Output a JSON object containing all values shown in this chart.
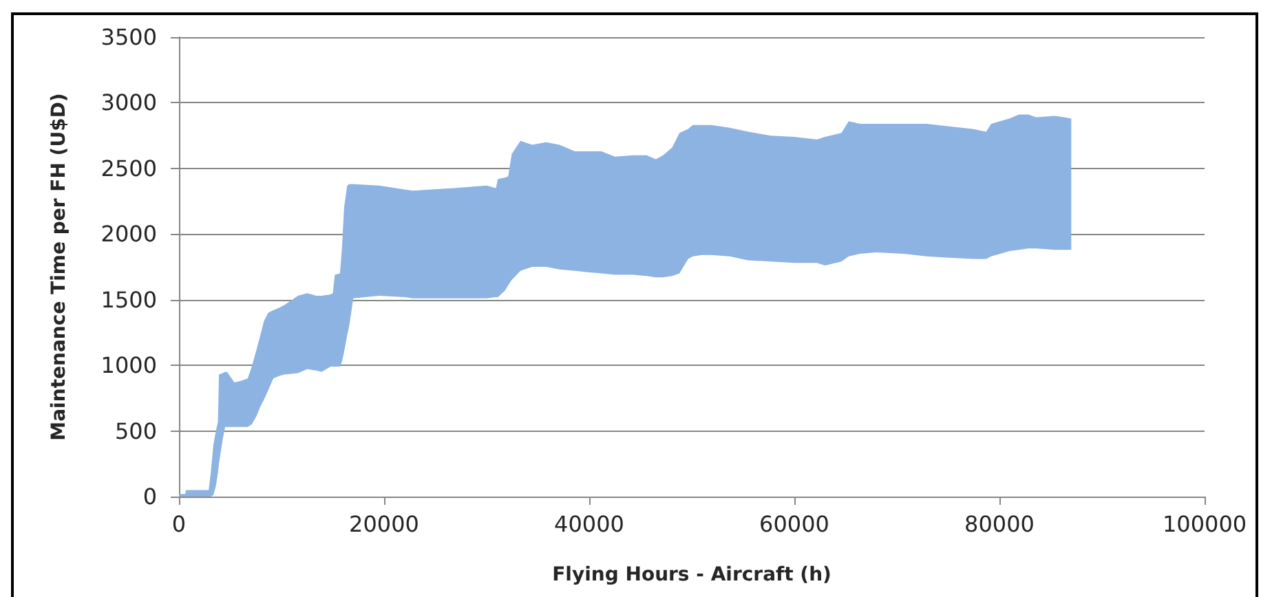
{
  "chart_data": {
    "type": "area",
    "xlabel": "Flying Hours - Aircraft (h)",
    "ylabel": "Maintenance Time per FH (U$D)",
    "x": [
      0,
      600,
      700,
      1700,
      2900,
      3100,
      3350,
      3600,
      3800,
      3900,
      4250,
      4500,
      4700,
      5400,
      6000,
      6700,
      7100,
      7600,
      7900,
      8300,
      8700,
      9200,
      9800,
      10300,
      11600,
      12500,
      13400,
      13900,
      14800,
      15000,
      15200,
      15700,
      15900,
      16100,
      16400,
      16600,
      17000,
      19500,
      22000,
      22800,
      24600,
      26800,
      30000,
      30900,
      31100,
      31800,
      32100,
      32450,
      33300,
      34450,
      35800,
      37100,
      38600,
      39800,
      41200,
      42500,
      44300,
      45600,
      46500,
      47200,
      48100,
      48800,
      49650,
      50100,
      51000,
      51900,
      53700,
      55500,
      57700,
      60000,
      62200,
      63000,
      64600,
      65300,
      66400,
      68000,
      70700,
      72900,
      75100,
      77400,
      78700,
      79200,
      81000,
      81900,
      82800,
      83600,
      85400,
      86300,
      87000
    ],
    "series": [
      {
        "color": "#8db3e2",
        "values": [
          null,
          null,
          null,
          null,
          null,
          null,
          null,
          null,
          null,
          null,
          null,
          null,
          null,
          null,
          null,
          null,
          null,
          null,
          null,
          null,
          null,
          null,
          null,
          null,
          null,
          null,
          null,
          null,
          null,
          null,
          null,
          null,
          null,
          null,
          null,
          null,
          null,
          null,
          null,
          null,
          null,
          null,
          null,
          null,
          null,
          null,
          null,
          null,
          null,
          null,
          null,
          null,
          null,
          null,
          null,
          null,
          null,
          null,
          null,
          null,
          null,
          null,
          null,
          null,
          null,
          null,
          null,
          null,
          null,
          null,
          null,
          null,
          null,
          null,
          null,
          null,
          null,
          null,
          null,
          null,
          null,
          null,
          null,
          null,
          null,
          null,
          null,
          null,
          null
        ],
        "upper": [
          20,
          20,
          50,
          50,
          50,
          180,
          390,
          500,
          570,
          930,
          940,
          950,
          950,
          870,
          880,
          900,
          990,
          1130,
          1220,
          1340,
          1400,
          1420,
          1440,
          1460,
          1530,
          1550,
          1530,
          1530,
          1540,
          1550,
          1690,
          1700,
          1900,
          2200,
          2370,
          2380,
          2380,
          2370,
          2340,
          2330,
          2340,
          2350,
          2370,
          2350,
          2420,
          2430,
          2440,
          2610,
          2710,
          2680,
          2700,
          2680,
          2630,
          2630,
          2630,
          2590,
          2600,
          2600,
          2570,
          2600,
          2660,
          2770,
          2800,
          2830,
          2830,
          2830,
          2810,
          2780,
          2750,
          2740,
          2720,
          2740,
          2770,
          2860,
          2840,
          2840,
          2840,
          2840,
          2820,
          2800,
          2780,
          2840,
          2880,
          2910,
          2910,
          2890,
          2900,
          2890,
          2880
        ],
        "lower": [
          0,
          0,
          0,
          0,
          0,
          0,
          10,
          80,
          180,
          250,
          430,
          530,
          530,
          530,
          530,
          530,
          550,
          620,
          680,
          740,
          810,
          900,
          920,
          930,
          940,
          970,
          960,
          950,
          990,
          990,
          990,
          990,
          1030,
          1100,
          1230,
          1300,
          1510,
          1530,
          1520,
          1510,
          1510,
          1510,
          1510,
          1520,
          1520,
          1570,
          1610,
          1650,
          1720,
          1750,
          1750,
          1730,
          1720,
          1710,
          1700,
          1690,
          1690,
          1680,
          1670,
          1670,
          1680,
          1700,
          1810,
          1830,
          1840,
          1840,
          1830,
          1800,
          1790,
          1780,
          1780,
          1760,
          1790,
          1830,
          1850,
          1860,
          1850,
          1830,
          1820,
          1810,
          1810,
          1830,
          1870,
          1880,
          1890,
          1890,
          1880,
          1880,
          1880
        ]
      }
    ],
    "xlim": [
      0,
      100000
    ],
    "xticks": [
      0,
      20000,
      40000,
      60000,
      80000,
      100000
    ],
    "ylim": [
      0,
      3500
    ],
    "yticks": [
      0,
      500,
      1000,
      1500,
      2000,
      2500,
      3000,
      3500
    ],
    "grid": "y"
  }
}
